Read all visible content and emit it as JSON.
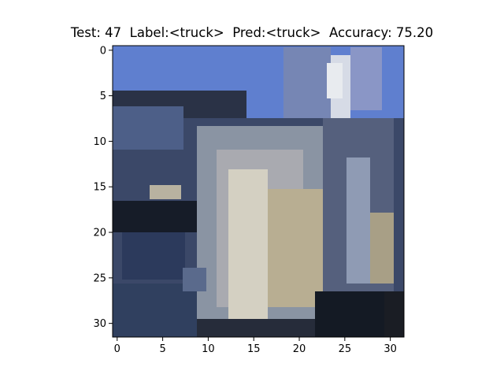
{
  "figure": {
    "title": "Test: 47  Label:<truck>  Pred:<truck>  Accuracy: 75.20"
  },
  "image": {
    "kind": "pixelated 32x32 photograph",
    "depicted": "front grille and hood of a silver truck against a blue sky",
    "colors": {
      "sky": "#5f7fcf",
      "shadow": "#18202e",
      "metal_light": "#c9c4b6",
      "metal_mid": "#8a94a3",
      "dark_blue": "#2c3a5c"
    }
  },
  "axes": {
    "xticks": [
      "0",
      "5",
      "10",
      "15",
      "20",
      "25",
      "30"
    ],
    "yticks": [
      "0",
      "5",
      "10",
      "15",
      "20",
      "25",
      "30"
    ]
  }
}
